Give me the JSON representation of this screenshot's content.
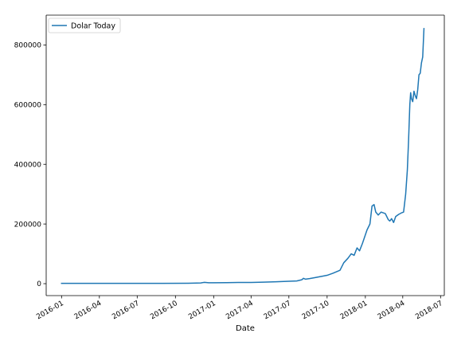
{
  "chart_data": {
    "type": "line",
    "title": "",
    "xlabel": "Date",
    "ylabel": "",
    "legend_position": "top-left",
    "grid": false,
    "xlim": [
      "2015-11-25",
      "2018-07-10"
    ],
    "ylim": [
      -40000,
      900000
    ],
    "x_ticks": [
      {
        "date": "2016-01-01",
        "label": "2016-01"
      },
      {
        "date": "2016-04-01",
        "label": "2016-04"
      },
      {
        "date": "2016-07-01",
        "label": "2016-07"
      },
      {
        "date": "2016-10-01",
        "label": "2016-10"
      },
      {
        "date": "2017-01-01",
        "label": "2017-01"
      },
      {
        "date": "2017-04-01",
        "label": "2017-04"
      },
      {
        "date": "2017-07-01",
        "label": "2017-07"
      },
      {
        "date": "2017-10-01",
        "label": "2017-10"
      },
      {
        "date": "2018-01-01",
        "label": "2018-01"
      },
      {
        "date": "2018-04-01",
        "label": "2018-04"
      },
      {
        "date": "2018-07-01",
        "label": "2018-07"
      }
    ],
    "y_ticks": [
      {
        "value": 0,
        "label": "0"
      },
      {
        "value": 200000,
        "label": "200000"
      },
      {
        "value": 400000,
        "label": "400000"
      },
      {
        "value": 600000,
        "label": "600000"
      },
      {
        "value": 800000,
        "label": "800000"
      }
    ],
    "colors": {
      "series": "#1f77b4"
    },
    "series": [
      {
        "name": "Dolar Today",
        "points": [
          [
            "2016-01-01",
            900
          ],
          [
            "2016-03-01",
            1050
          ],
          [
            "2016-06-01",
            1050
          ],
          [
            "2016-09-01",
            1000
          ],
          [
            "2016-11-01",
            1500
          ],
          [
            "2016-12-01",
            2500
          ],
          [
            "2016-12-10",
            4500
          ],
          [
            "2016-12-20",
            3000
          ],
          [
            "2017-01-01",
            3000
          ],
          [
            "2017-02-01",
            3300
          ],
          [
            "2017-03-01",
            3900
          ],
          [
            "2017-04-01",
            4000
          ],
          [
            "2017-05-01",
            5000
          ],
          [
            "2017-06-01",
            6500
          ],
          [
            "2017-07-01",
            8000
          ],
          [
            "2017-07-20",
            9000
          ],
          [
            "2017-08-01",
            13000
          ],
          [
            "2017-08-05",
            18000
          ],
          [
            "2017-08-10",
            15000
          ],
          [
            "2017-08-20",
            17000
          ],
          [
            "2017-09-01",
            20000
          ],
          [
            "2017-09-20",
            25000
          ],
          [
            "2017-10-01",
            28000
          ],
          [
            "2017-10-15",
            35000
          ],
          [
            "2017-11-01",
            45000
          ],
          [
            "2017-11-10",
            70000
          ],
          [
            "2017-11-20",
            85000
          ],
          [
            "2017-11-28",
            100000
          ],
          [
            "2017-12-05",
            95000
          ],
          [
            "2017-12-12",
            120000
          ],
          [
            "2017-12-18",
            110000
          ],
          [
            "2017-12-25",
            135000
          ],
          [
            "2018-01-05",
            180000
          ],
          [
            "2018-01-12",
            200000
          ],
          [
            "2018-01-17",
            260000
          ],
          [
            "2018-01-22",
            265000
          ],
          [
            "2018-01-26",
            240000
          ],
          [
            "2018-02-01",
            230000
          ],
          [
            "2018-02-08",
            240000
          ],
          [
            "2018-02-18",
            235000
          ],
          [
            "2018-02-25",
            215000
          ],
          [
            "2018-03-01",
            210000
          ],
          [
            "2018-03-05",
            218000
          ],
          [
            "2018-03-10",
            205000
          ],
          [
            "2018-03-15",
            225000
          ],
          [
            "2018-03-22",
            232000
          ],
          [
            "2018-03-30",
            238000
          ],
          [
            "2018-04-03",
            240000
          ],
          [
            "2018-04-08",
            300000
          ],
          [
            "2018-04-12",
            380000
          ],
          [
            "2018-04-15",
            480000
          ],
          [
            "2018-04-18",
            600000
          ],
          [
            "2018-04-20",
            640000
          ],
          [
            "2018-04-22",
            620000
          ],
          [
            "2018-04-25",
            610000
          ],
          [
            "2018-04-28",
            645000
          ],
          [
            "2018-05-01",
            630000
          ],
          [
            "2018-05-04",
            620000
          ],
          [
            "2018-05-07",
            650000
          ],
          [
            "2018-05-10",
            700000
          ],
          [
            "2018-05-13",
            705000
          ],
          [
            "2018-05-16",
            740000
          ],
          [
            "2018-05-19",
            760000
          ],
          [
            "2018-05-22",
            855000
          ]
        ]
      }
    ]
  }
}
